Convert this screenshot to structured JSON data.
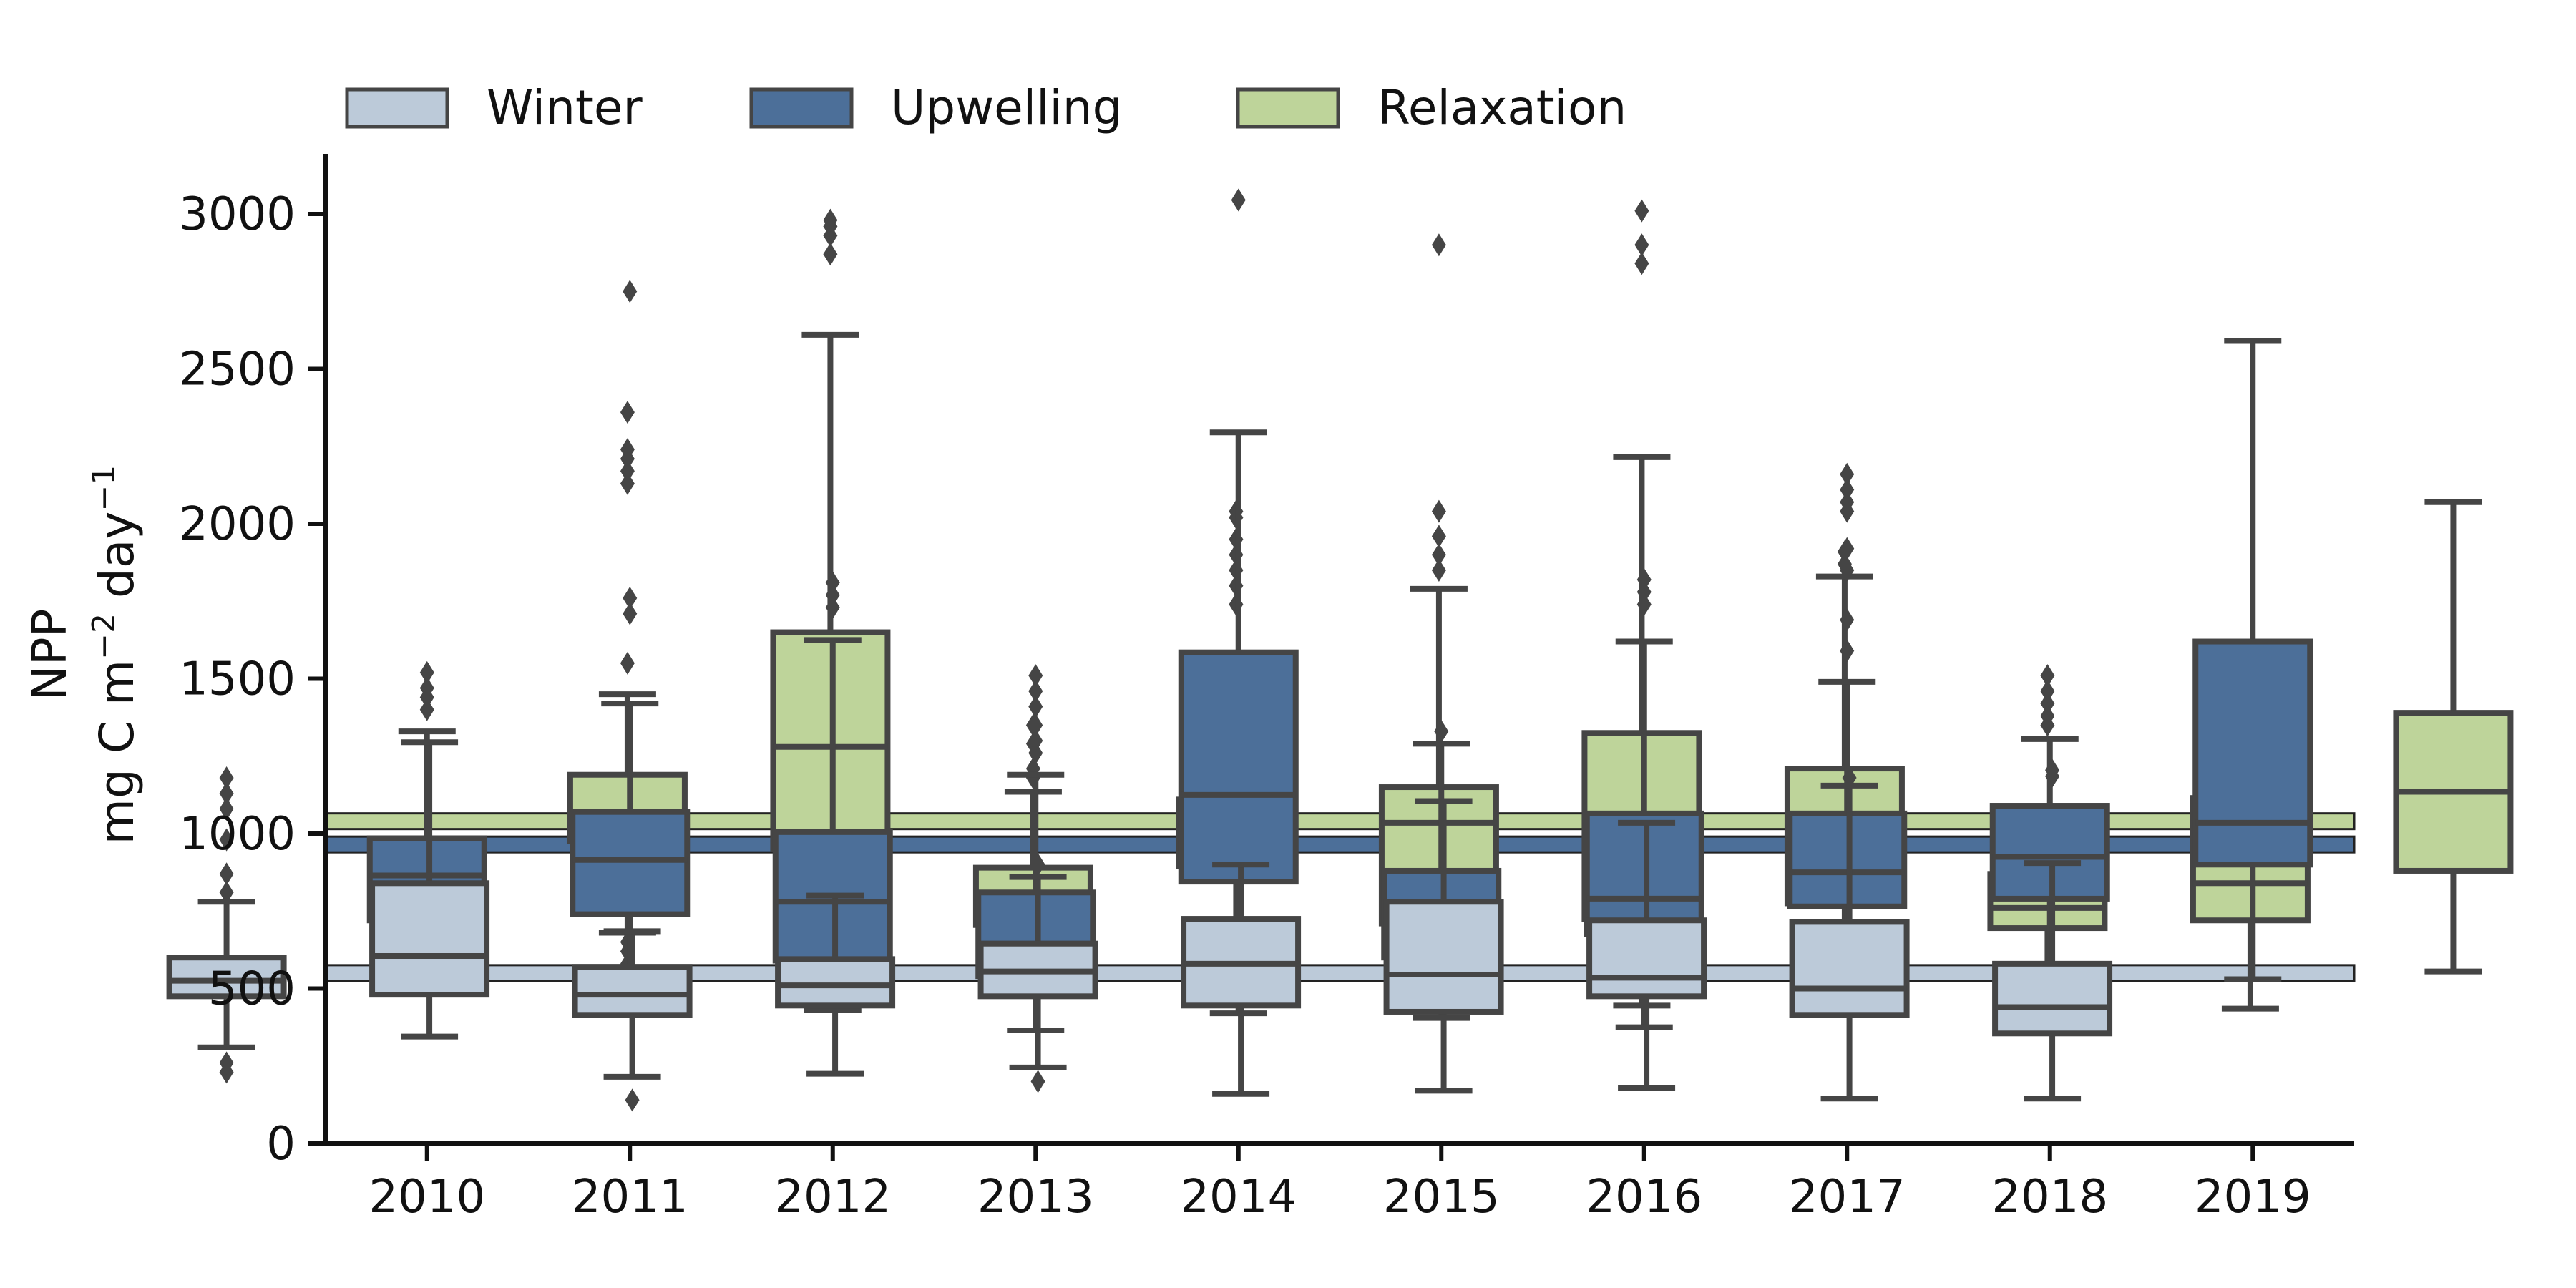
{
  "chart_data": {
    "type": "box",
    "ylabel": {
      "line1": "NPP",
      "line2_prefix": "mg C m",
      "line2_exp1": "−2",
      "line2_mid": " day",
      "line2_exp2": "−1"
    },
    "ylim": [
      0,
      3200
    ],
    "yticks": [
      0,
      500,
      1000,
      1500,
      2000,
      2500,
      3000
    ],
    "categories": [
      "2010",
      "2011",
      "2012",
      "2013",
      "2014",
      "2015",
      "2016",
      "2017",
      "2018",
      "2019"
    ],
    "legend_position": "top-left",
    "grid": false,
    "edge_color": "#454545",
    "series": [
      {
        "name": "Winter",
        "color": "#bccad9",
        "reference_line": 550,
        "boxes": [
          {
            "whislo": 310,
            "q1": 475,
            "med": 525,
            "q3": 600,
            "whishi": 780,
            "fliers": [
              230,
              260,
              810,
              870,
              980,
              1080,
              1130,
              1180
            ]
          },
          {
            "whislo": 345,
            "q1": 480,
            "med": 605,
            "q3": 840,
            "whishi": 1295,
            "fliers": []
          },
          {
            "whislo": 215,
            "q1": 415,
            "med": 480,
            "q3": 570,
            "whishi": 685,
            "fliers": [
              140
            ]
          },
          {
            "whislo": 225,
            "q1": 445,
            "med": 510,
            "q3": 595,
            "whishi": 800,
            "fliers": []
          },
          {
            "whislo": 245,
            "q1": 475,
            "med": 555,
            "q3": 645,
            "whishi": 860,
            "fliers": [
              200,
              900
            ]
          },
          {
            "whislo": 160,
            "q1": 445,
            "med": 580,
            "q3": 725,
            "whishi": 900,
            "fliers": []
          },
          {
            "whislo": 170,
            "q1": 425,
            "med": 545,
            "q3": 780,
            "whishi": 1105,
            "fliers": []
          },
          {
            "whislo": 180,
            "q1": 475,
            "med": 535,
            "q3": 720,
            "whishi": 1035,
            "fliers": []
          },
          {
            "whislo": 145,
            "q1": 415,
            "med": 500,
            "q3": 715,
            "whishi": 1155,
            "fliers": [
              1180
            ]
          },
          {
            "whislo": 145,
            "q1": 355,
            "med": 440,
            "q3": 580,
            "whishi": 905,
            "fliers": [
              1185,
              1205
            ]
          }
        ]
      },
      {
        "name": "Upwelling",
        "color": "#4c6f99",
        "reference_line": 965,
        "boxes": [
          {
            "whislo": 555,
            "q1": 720,
            "med": 865,
            "q3": 985,
            "whishi": 1330,
            "fliers": [
              1400,
              1440,
              1470,
              1520
            ]
          },
          {
            "whislo": 490,
            "q1": 740,
            "med": 915,
            "q3": 1070,
            "whishi": 1420,
            "fliers": [
              1710,
              1760,
              2750
            ]
          },
          {
            "whislo": 430,
            "q1": 590,
            "med": 780,
            "q3": 1005,
            "whishi": 1625,
            "fliers": [
              1730,
              1770,
              1810
            ]
          },
          {
            "whislo": 365,
            "q1": 540,
            "med": 645,
            "q3": 810,
            "whishi": 1190,
            "fliers": [
              1260,
              1300,
              1350,
              1410,
              1460,
              1510
            ]
          },
          {
            "whislo": 420,
            "q1": 845,
            "med": 1125,
            "q3": 1585,
            "whishi": 2295,
            "fliers": [
              3045
            ]
          },
          {
            "whislo": 405,
            "q1": 600,
            "med": 690,
            "q3": 880,
            "whishi": 1290,
            "fliers": [
              1330
            ]
          },
          {
            "whislo": 375,
            "q1": 675,
            "med": 790,
            "q3": 1065,
            "whishi": 1620,
            "fliers": [
              1740,
              1780,
              1820
            ]
          },
          {
            "whislo": 555,
            "q1": 765,
            "med": 875,
            "q3": 1065,
            "whishi": 1490,
            "fliers": [
              1590,
              1690,
              1850,
              1920,
              2040,
              2070,
              2110,
              2160
            ]
          },
          {
            "whislo": 390,
            "q1": 790,
            "med": 925,
            "q3": 1090,
            "whishi": 1305,
            "fliers": []
          },
          {
            "whislo": 530,
            "q1": 900,
            "med": 1035,
            "q3": 1620,
            "whishi": 2590,
            "fliers": []
          }
        ]
      },
      {
        "name": "Relaxation",
        "color": "#bed49a",
        "reference_line": 1040,
        "boxes": [
          {
            "whislo": 680,
            "q1": 975,
            "med": 1060,
            "q3": 1190,
            "whishi": 1450,
            "fliers": [
              540,
              580,
              620,
              650,
              1550,
              2130,
              2170,
              2210,
              2240,
              2360
            ]
          },
          {
            "whislo": 780,
            "q1": 950,
            "med": 1280,
            "q3": 1650,
            "whishi": 2610,
            "fliers": [
              2870,
              2930,
              2960,
              2980
            ]
          },
          {
            "whislo": 480,
            "q1": 705,
            "med": 800,
            "q3": 890,
            "whishi": 1135,
            "fliers": [
              1180,
              1210,
              1290,
              1350
            ]
          },
          {
            "whislo": 635,
            "q1": 895,
            "med": 1025,
            "q3": 1110,
            "whishi": 1400,
            "fliers": [
              1430,
              1460,
              1740,
              1800,
              1850,
              1900,
              1950,
              2020,
              2040
            ]
          },
          {
            "whislo": 515,
            "q1": 710,
            "med": 1035,
            "q3": 1150,
            "whishi": 1790,
            "fliers": [
              1850,
              1900,
              1960,
              2040,
              2900
            ]
          },
          {
            "whislo": 445,
            "q1": 725,
            "med": 865,
            "q3": 1325,
            "whishi": 2215,
            "fliers": [
              2840,
              2900,
              3010
            ]
          },
          {
            "whislo": 460,
            "q1": 775,
            "med": 895,
            "q3": 1210,
            "whishi": 1830,
            "fliers": [
              1870,
              1910
            ]
          },
          {
            "whislo": 500,
            "q1": 695,
            "med": 760,
            "q3": 870,
            "whishi": 1065,
            "fliers": [
              1350,
              1380,
              1420,
              1460,
              1510
            ]
          },
          {
            "whislo": 435,
            "q1": 720,
            "med": 840,
            "q3": 1115,
            "whishi": 1505,
            "fliers": []
          },
          {
            "whislo": 555,
            "q1": 880,
            "med": 1135,
            "q3": 1390,
            "whishi": 2070,
            "fliers": []
          }
        ]
      }
    ]
  }
}
